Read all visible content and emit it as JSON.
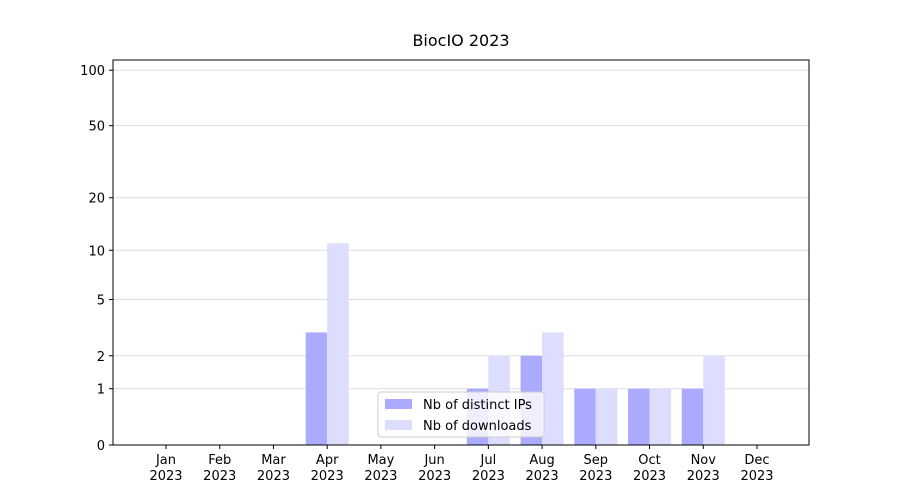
{
  "chart_data": {
    "type": "bar",
    "title": "BiocIO 2023",
    "yscale": "log1p",
    "categories": [
      "Jan\n2023",
      "Feb\n2023",
      "Mar\n2023",
      "Apr\n2023",
      "May\n2023",
      "Jun\n2023",
      "Jul\n2023",
      "Aug\n2023",
      "Sep\n2023",
      "Oct\n2023",
      "Nov\n2023",
      "Dec\n2023"
    ],
    "series": [
      {
        "name": "Nb of distinct IPs",
        "color": "#aaaaff",
        "values": [
          0,
          0,
          0,
          3,
          0,
          0,
          1,
          2,
          1,
          1,
          1,
          0
        ]
      },
      {
        "name": "Nb of downloads",
        "color": "#ddddff",
        "values": [
          0,
          0,
          0,
          11,
          0,
          0,
          2,
          3,
          1,
          1,
          2,
          0
        ]
      }
    ],
    "ylim": [
      0,
      113.5
    ],
    "yticks": [
      0,
      1,
      2,
      5,
      10,
      20,
      50,
      100
    ],
    "grid": true,
    "legend": "lower center"
  }
}
